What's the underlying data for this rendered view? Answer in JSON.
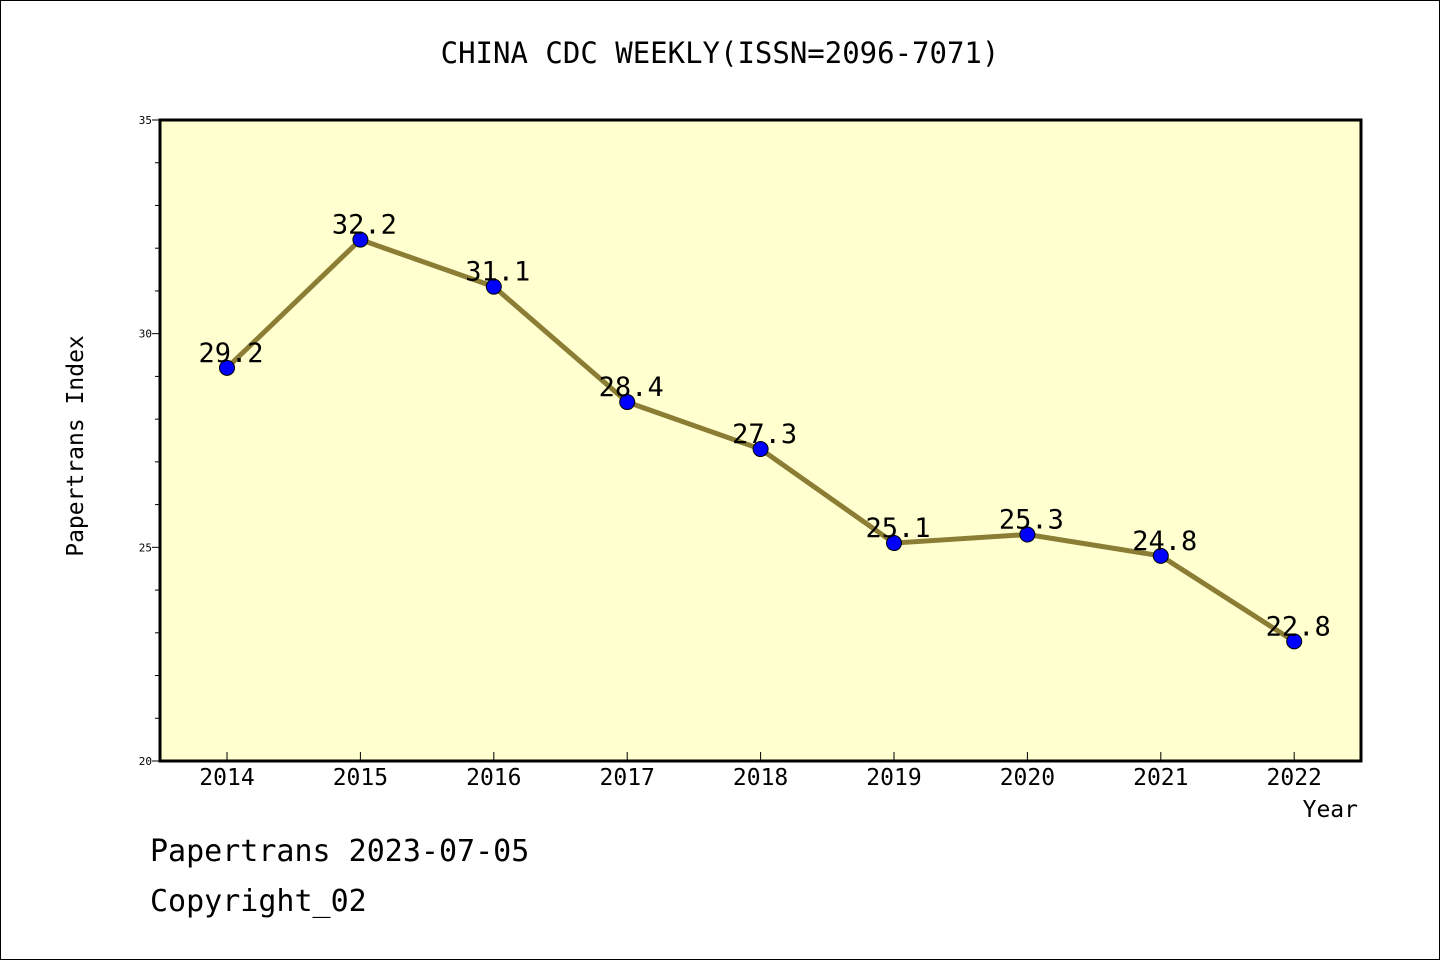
{
  "chart_data": {
    "type": "line",
    "title": "CHINA CDC WEEKLY(ISSN=2096-7071)",
    "xlabel": "Year",
    "ylabel": "Papertrans Index",
    "categories": [
      "2014",
      "2015",
      "2016",
      "2017",
      "2018",
      "2019",
      "2020",
      "2021",
      "2022"
    ],
    "series": [
      {
        "values": [
          29.2,
          32.2,
          31.1,
          28.4,
          27.3,
          25.1,
          25.3,
          24.8,
          22.8
        ],
        "labels": [
          "29.2",
          "32.2",
          "31.1",
          "28.4",
          "27.3",
          "25.1",
          "25.3",
          "24.8",
          "22.8"
        ]
      }
    ],
    "ylim": [
      20,
      35
    ],
    "yticks": [
      20,
      25,
      30,
      35
    ],
    "grid": false,
    "colors": {
      "plot_background": "#ffffd0",
      "line": "#8b7d34",
      "marker": "#0000ff"
    }
  },
  "footer": {
    "line1": "Papertrans 2023-07-05",
    "line2": "Copyright_02"
  }
}
